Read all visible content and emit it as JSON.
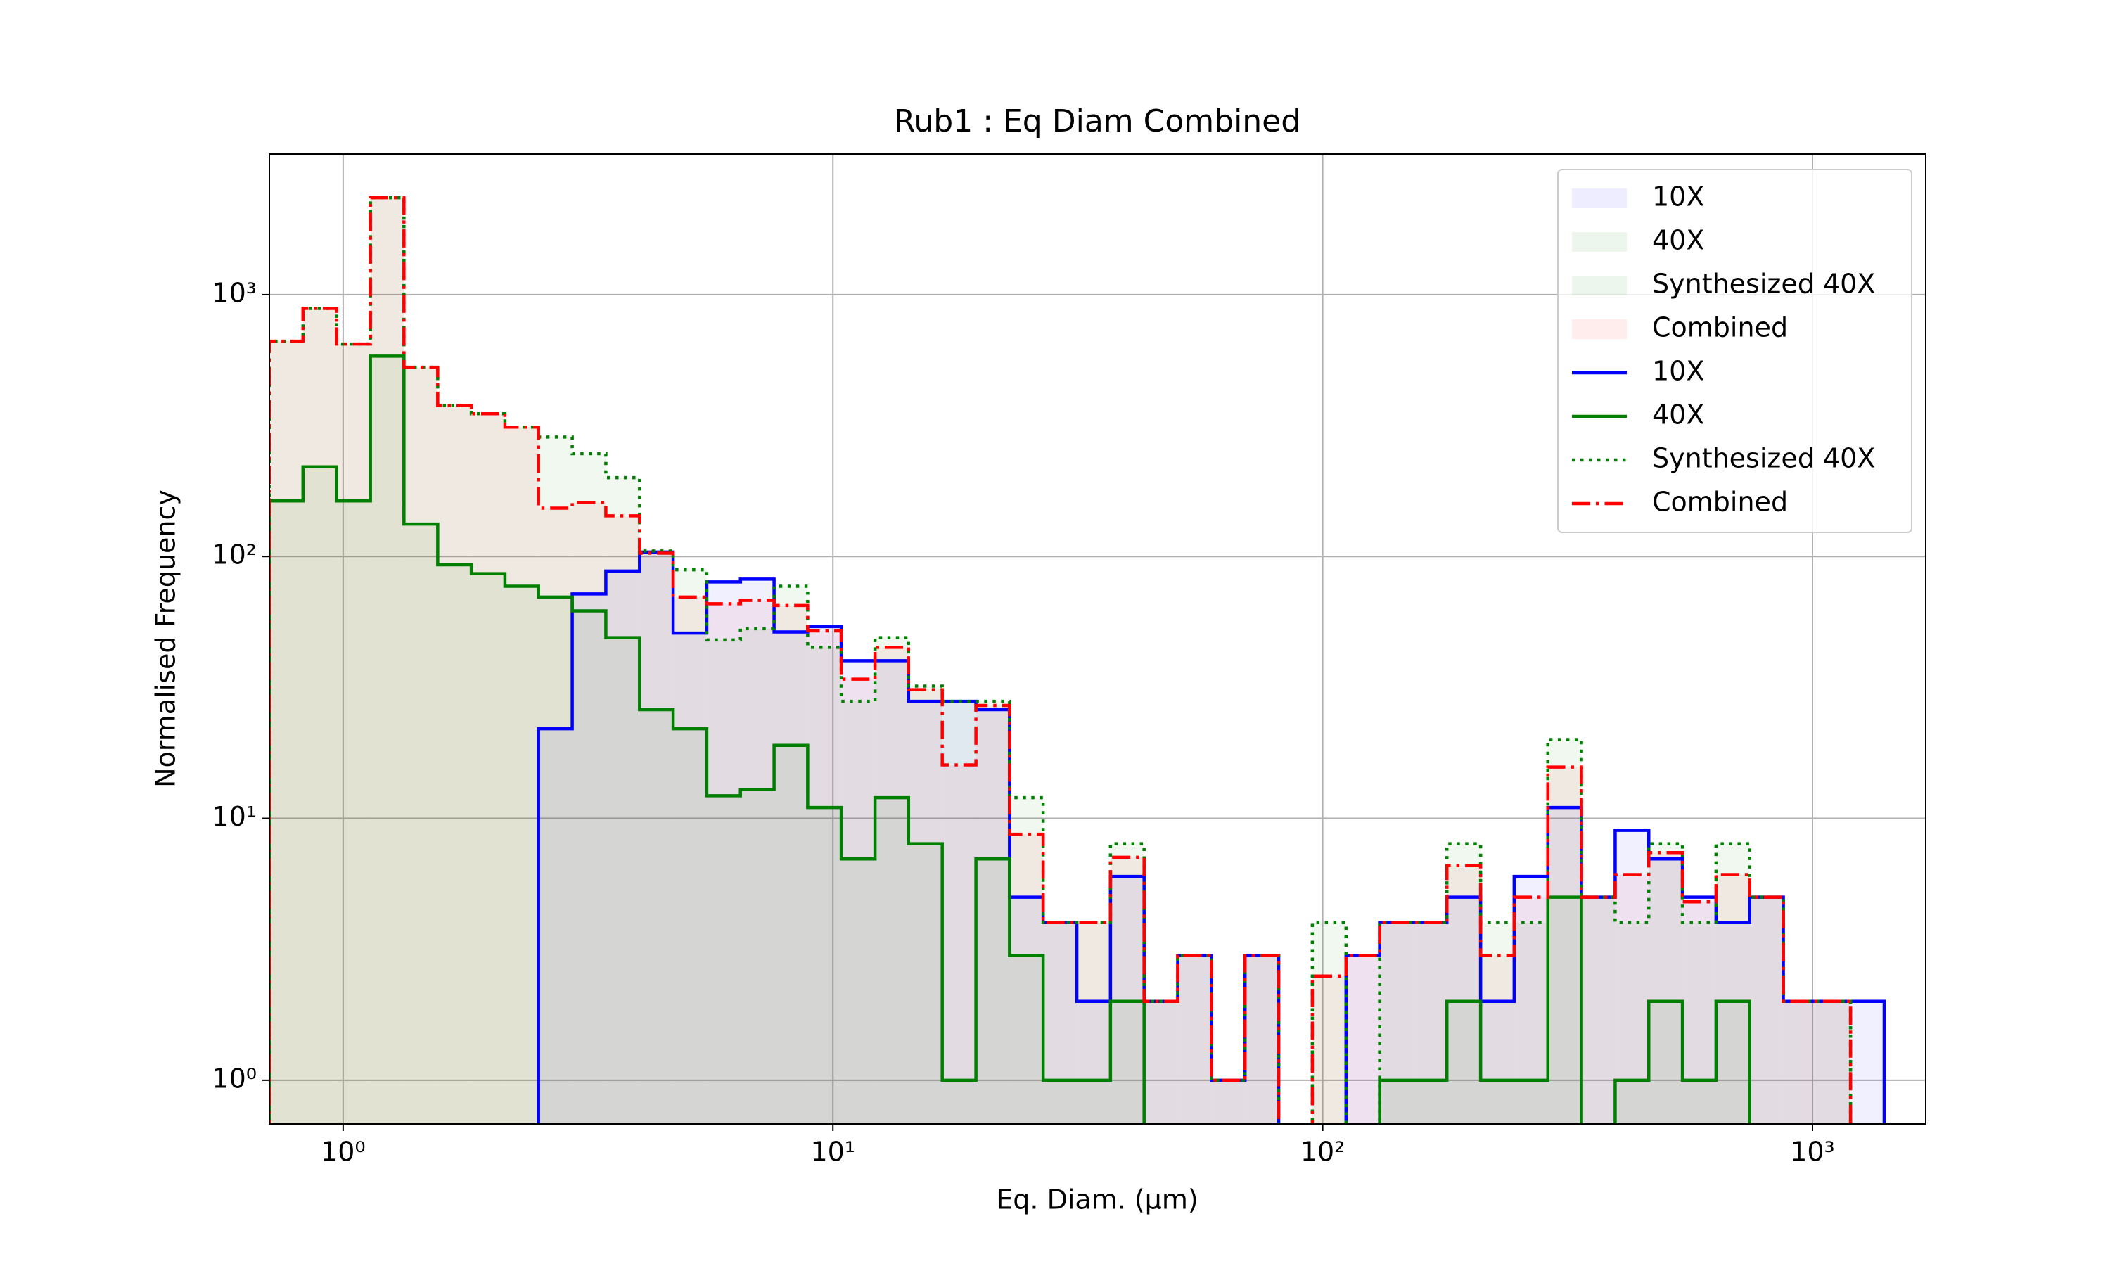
{
  "chart_data": {
    "type": "histogram",
    "title": "Rub1 : Eq Diam Combined",
    "x_label": "Eq. Diam. (µm)",
    "y_label": "Normalised Frequency",
    "x_scale": "log",
    "y_scale": "log",
    "grid": true,
    "legend_loc": "upper right",
    "xlim": [
      0.707,
      1703
    ],
    "ylim": [
      0.681,
      3443
    ],
    "xticks": [
      {
        "value": 1,
        "label": "10⁰"
      },
      {
        "value": 10,
        "label": "10¹"
      },
      {
        "value": 100,
        "label": "10²"
      },
      {
        "value": 1000,
        "label": "10³"
      }
    ],
    "yticks": [
      {
        "value": 1,
        "label": "10⁰"
      },
      {
        "value": 10,
        "label": "10¹"
      },
      {
        "value": 100,
        "label": "10²"
      },
      {
        "value": 1000,
        "label": "10³"
      }
    ],
    "bins": [
      0.707,
      0.828,
      0.97,
      1.137,
      1.331,
      1.56,
      1.827,
      2.14,
      2.506,
      2.936,
      3.439,
      4.029,
      4.719,
      5.527,
      6.474,
      7.584,
      8.882,
      10.4,
      12.19,
      14.27,
      16.72,
      19.59,
      22.94,
      26.87,
      31.48,
      36.87,
      43.19,
      50.59,
      59.26,
      69.41,
      81.31,
      95.24,
      111.6,
      130.7,
      153.1,
      179.3,
      210.1,
      246.0,
      288.2,
      337.6,
      395.5,
      463.2,
      542.6,
      635.5,
      744.4,
      872.0,
      1021,
      1196,
      1401
    ],
    "series": [
      {
        "name": "10X",
        "color": "#0000ff",
        "linestyle": "solid",
        "values": [
          null,
          null,
          null,
          null,
          null,
          null,
          null,
          null,
          22,
          72,
          88,
          104,
          51,
          80,
          82,
          51.5,
          54,
          40,
          40,
          28,
          28,
          26,
          5,
          4,
          2,
          6,
          2,
          3,
          1,
          3,
          null,
          null,
          3,
          4,
          4,
          5,
          2,
          6,
          11,
          5,
          9,
          7,
          5,
          4,
          5,
          2,
          2,
          2
        ]
      },
      {
        "name": "40X",
        "color": "#008000",
        "linestyle": "solid",
        "values": [
          163,
          220,
          163,
          582,
          133,
          93,
          86,
          77,
          70,
          62,
          49,
          26,
          22,
          12.2,
          12.9,
          19,
          11,
          7,
          12,
          8,
          1,
          7,
          3,
          1,
          1,
          2,
          null,
          null,
          null,
          null,
          null,
          null,
          null,
          1,
          1,
          2,
          1,
          1,
          5,
          null,
          1,
          2,
          1,
          2,
          null,
          null,
          null,
          null
        ]
      },
      {
        "name": "Synthesized 40X",
        "color": "#008000",
        "linestyle": "dotted",
        "values": [
          664,
          886,
          648,
          2344,
          528,
          377,
          351,
          312,
          286,
          247,
          200,
          105,
          89,
          48,
          53,
          77,
          45,
          28,
          49,
          32,
          28,
          28,
          12,
          4,
          4,
          8,
          2,
          3,
          1,
          3,
          null,
          4,
          null,
          4,
          4,
          8,
          4,
          4,
          20,
          5,
          4,
          8,
          4,
          8,
          5,
          2,
          2,
          null
        ]
      },
      {
        "name": "Combined",
        "color": "#ff0000",
        "linestyle": "dashdot",
        "values": [
          664,
          886,
          648,
          2344,
          528,
          377,
          351,
          312,
          153,
          161,
          143,
          103,
          70,
          66,
          68,
          65,
          52,
          34,
          45,
          31,
          16,
          27,
          8.7,
          4,
          4,
          7.1,
          2,
          3,
          1,
          3,
          null,
          2.5,
          3,
          4,
          4,
          6.6,
          3,
          5,
          15.7,
          5,
          6.1,
          7.4,
          4.8,
          6.1,
          5,
          2,
          2,
          null
        ]
      }
    ]
  }
}
